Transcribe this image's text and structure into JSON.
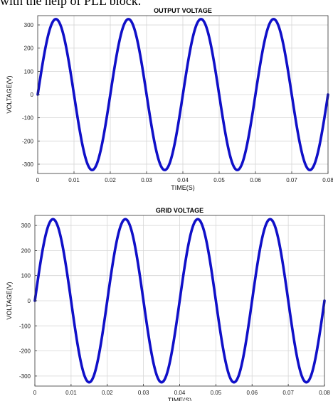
{
  "doc_text": "with the help of PLL block.",
  "chart_data": [
    {
      "type": "line",
      "title": "OUTPUT VOLTAGE",
      "xlabel": "TIME(S)",
      "ylabel": "VOLTAGE(V)",
      "xlim": [
        0,
        0.08
      ],
      "ylim": [
        -340,
        340
      ],
      "x_ticks": [
        0,
        0.01,
        0.02,
        0.03,
        0.04,
        0.05,
        0.06,
        0.07,
        0.08
      ],
      "x_tick_labels": [
        "0",
        "0.01",
        "0.02",
        "0.03",
        "0.04",
        "0.05",
        "0.06",
        "0.07",
        "0.08"
      ],
      "y_ticks": [
        300,
        200,
        100,
        0,
        -100,
        -200,
        -300
      ],
      "y_tick_labels": [
        "300",
        "200",
        "100",
        "0",
        "-100",
        "-200",
        "-300"
      ],
      "grid": true,
      "series": [
        {
          "color": "#1010c8",
          "amplitude": 325,
          "frequency_hz": 50,
          "phase": 0
        }
      ]
    },
    {
      "type": "line",
      "title": "GRID VOLTAGE",
      "xlabel": "TIME(S)",
      "ylabel": "VOLTAGE(V)",
      "xlim": [
        0,
        0.08
      ],
      "ylim": [
        -340,
        340
      ],
      "x_ticks": [
        0,
        0.01,
        0.02,
        0.03,
        0.04,
        0.05,
        0.06,
        0.07,
        0.08
      ],
      "x_tick_labels": [
        "0",
        "0.01",
        "0.02",
        "0.03",
        "0.04",
        "0.05",
        "0.06",
        "0.07",
        "0.08"
      ],
      "y_ticks": [
        300,
        200,
        100,
        0,
        -100,
        -200,
        -300
      ],
      "y_tick_labels": [
        "300",
        "200",
        "100",
        "0",
        "-100",
        "-200",
        "-300"
      ],
      "grid": true,
      "series": [
        {
          "color": "#1010c8",
          "amplitude": 325,
          "frequency_hz": 50,
          "phase": 0
        }
      ]
    }
  ]
}
